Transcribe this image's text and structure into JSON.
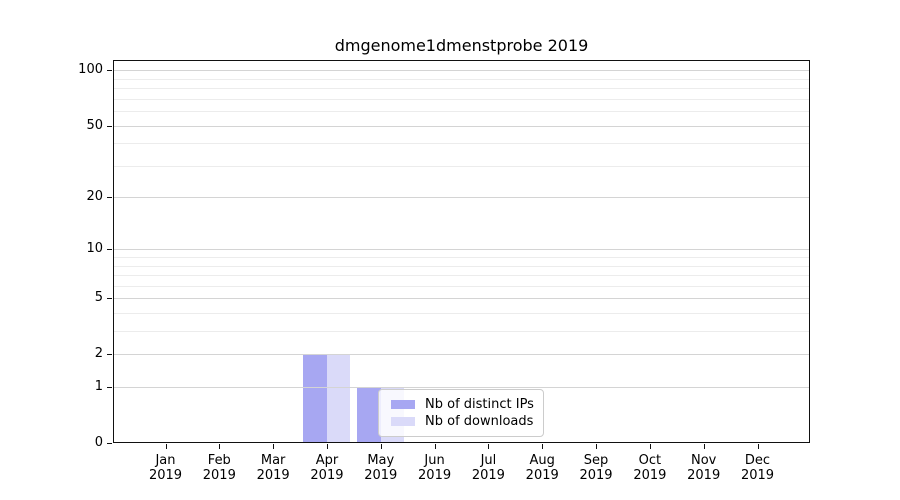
{
  "figure": {
    "background": "#ffffff"
  },
  "chart_data": {
    "type": "bar",
    "title": "dmgenome1dmenstprobe 2019",
    "categories": [
      "Jan",
      "Feb",
      "Mar",
      "Apr",
      "May",
      "Jun",
      "Jul",
      "Aug",
      "Sep",
      "Oct",
      "Nov",
      "Dec"
    ],
    "x_year_label": "2019",
    "series": [
      {
        "name": "Nb of distinct IPs",
        "color": "#a7a7f2",
        "values": [
          0,
          0,
          0,
          2,
          1,
          0,
          0,
          0,
          0,
          0,
          0,
          0
        ]
      },
      {
        "name": "Nb of downloads",
        "color": "#dadaf9",
        "values": [
          0,
          0,
          0,
          2,
          1,
          0,
          0,
          0,
          0,
          0,
          0,
          0
        ]
      }
    ],
    "y_scale": "log1p",
    "ylim": [
      0,
      114
    ],
    "y_ticks": [
      0,
      1,
      2,
      5,
      10,
      20,
      50,
      100
    ],
    "y_minor_gridlines": [
      3,
      4,
      6,
      7,
      8,
      9,
      30,
      40,
      60,
      70,
      80,
      90
    ],
    "grid": true,
    "legend_position": "lower center",
    "colors": {
      "grid_major": "#d4d4d4",
      "grid_minor": "#ececec",
      "spine": "#111111",
      "text": "#000000",
      "legend_border": "#cccccc",
      "legend_background": "rgba(255,255,255,0.8)"
    }
  }
}
